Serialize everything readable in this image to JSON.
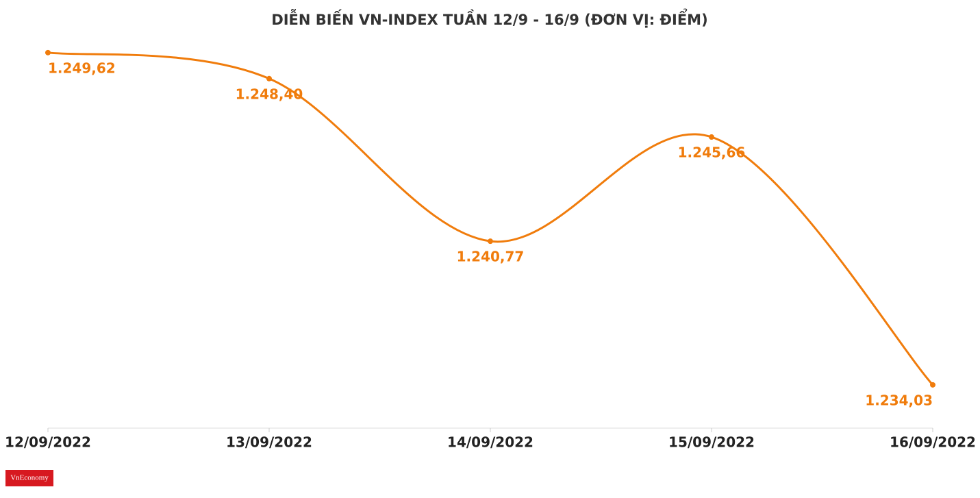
{
  "chart_data": {
    "type": "line",
    "title": "DIỄN BIẾN VN-INDEX TUẦN 12/9 - 16/9 (ĐƠN VỊ: ĐIỂM)",
    "categories": [
      "12/09/2022",
      "13/09/2022",
      "14/09/2022",
      "15/09/2022",
      "16/09/2022"
    ],
    "values": [
      1249.62,
      1248.4,
      1240.77,
      1245.66,
      1234.03
    ],
    "value_labels": [
      "1.249,62",
      "1.248,40",
      "1.240,77",
      "1.245,66",
      "1.234,03"
    ],
    "color": "#f07c0c",
    "ylim": [
      1232,
      1250
    ],
    "grid": false
  },
  "logo": "VnEconomy"
}
